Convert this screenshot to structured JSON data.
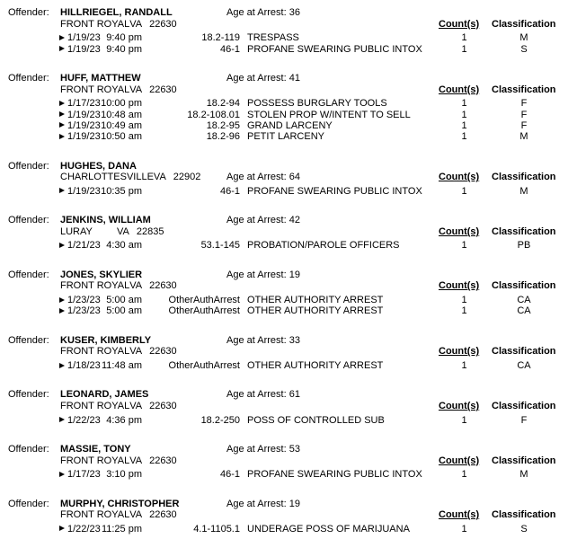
{
  "labels": {
    "offender_prefix": "Offender:",
    "age_prefix": "Age at Arrest:",
    "counts_header": "Count(s)",
    "classification_header": "Classification"
  },
  "icons": {
    "record_marker": "right-pointing-triangle"
  },
  "colors": {
    "text": "#000000",
    "background": "#ffffff"
  },
  "offenders": [
    {
      "name": "HILLRIEGEL, RANDALL",
      "city": "FRONT ROYAL",
      "state": "VA",
      "zip": "22630",
      "age": "36",
      "age_on_address_line": false,
      "records": [
        {
          "date": "1/19/23",
          "time": "9:40 pm",
          "code": "18.2-119",
          "description": "TRESPASS",
          "count": "1",
          "classification": "M"
        },
        {
          "date": "1/19/23",
          "time": "9:40 pm",
          "code": "46-1",
          "description": "PROFANE SWEARING PUBLIC INTOX",
          "count": "1",
          "classification": "S"
        }
      ]
    },
    {
      "name": "HUFF, MATTHEW",
      "city": "FRONT ROYAL",
      "state": "VA",
      "zip": "22630",
      "age": "41",
      "age_on_address_line": false,
      "records": [
        {
          "date": "1/17/23",
          "time": "10:00 pm",
          "code": "18.2-94",
          "description": "POSSESS BURGLARY TOOLS",
          "count": "1",
          "classification": "F"
        },
        {
          "date": "1/19/23",
          "time": "10:48 am",
          "code": "18.2-108.01",
          "description": "STOLEN PROP W/INTENT TO SELL",
          "count": "1",
          "classification": "F"
        },
        {
          "date": "1/19/23",
          "time": "10:49 am",
          "code": "18.2-95",
          "description": "GRAND LARCENY",
          "count": "1",
          "classification": "F"
        },
        {
          "date": "1/19/23",
          "time": "10:50 am",
          "code": "18.2-96",
          "description": "PETIT LARCENY",
          "count": "1",
          "classification": "M"
        }
      ]
    },
    {
      "name": "HUGHES, DANA",
      "city": "CHARLOTTESVILLE",
      "state": "VA",
      "zip": "22902",
      "age": "64",
      "age_on_address_line": true,
      "records": [
        {
          "date": "1/19/23",
          "time": "10:35 pm",
          "code": "46-1",
          "description": "PROFANE SWEARING PUBLIC INTOX",
          "count": "1",
          "classification": "M"
        }
      ]
    },
    {
      "name": "JENKINS, WILLIAM",
      "city": "LURAY",
      "state": "VA",
      "zip": "22835",
      "age": "42",
      "age_on_address_line": false,
      "records": [
        {
          "date": "1/21/23",
          "time": "4:30 am",
          "code": "53.1-145",
          "description": "PROBATION/PAROLE OFFICERS",
          "count": "1",
          "classification": "PB"
        }
      ]
    },
    {
      "name": "JONES, SKYLIER",
      "city": "FRONT ROYAL",
      "state": "VA",
      "zip": "22630",
      "age": "19",
      "age_on_address_line": false,
      "records": [
        {
          "date": "1/23/23",
          "time": "5:00 am",
          "code": "OtherAuthArrest",
          "description": "OTHER AUTHORITY ARREST",
          "count": "1",
          "classification": "CA"
        },
        {
          "date": "1/23/23",
          "time": "5:00 am",
          "code": "OtherAuthArrest",
          "description": "OTHER AUTHORITY ARREST",
          "count": "1",
          "classification": "CA"
        }
      ]
    },
    {
      "name": "KUSER, KIMBERLY",
      "city": "FRONT ROYAL",
      "state": "VA",
      "zip": "22630",
      "age": "33",
      "age_on_address_line": false,
      "records": [
        {
          "date": "1/18/23",
          "time": "11:48 am",
          "code": "OtherAuthArrest",
          "description": "OTHER AUTHORITY ARREST",
          "count": "1",
          "classification": "CA"
        }
      ]
    },
    {
      "name": "LEONARD, JAMES",
      "city": "FRONT ROYAL",
      "state": "VA",
      "zip": "22630",
      "age": "61",
      "age_on_address_line": false,
      "records": [
        {
          "date": "1/22/23",
          "time": "4:36 pm",
          "code": "18.2-250",
          "description": "POSS OF CONTROLLED SUB",
          "count": "1",
          "classification": "F"
        }
      ]
    },
    {
      "name": "MASSIE, TONY",
      "city": "FRONT ROYAL",
      "state": "VA",
      "zip": "22630",
      "age": "53",
      "age_on_address_line": false,
      "records": [
        {
          "date": "1/17/23",
          "time": "3:10 pm",
          "code": "46-1",
          "description": "PROFANE SWEARING PUBLIC INTOX",
          "count": "1",
          "classification": "M"
        }
      ]
    },
    {
      "name": "MURPHY, CHRISTOPHER",
      "city": "FRONT ROYAL",
      "state": "VA",
      "zip": "22630",
      "age": "19",
      "age_on_address_line": false,
      "records": [
        {
          "date": "1/22/23",
          "time": "11:25 pm",
          "code": "4.1-1105.1",
          "description": "UNDERAGE POSS OF MARIJUANA",
          "count": "1",
          "classification": "S"
        }
      ]
    }
  ]
}
